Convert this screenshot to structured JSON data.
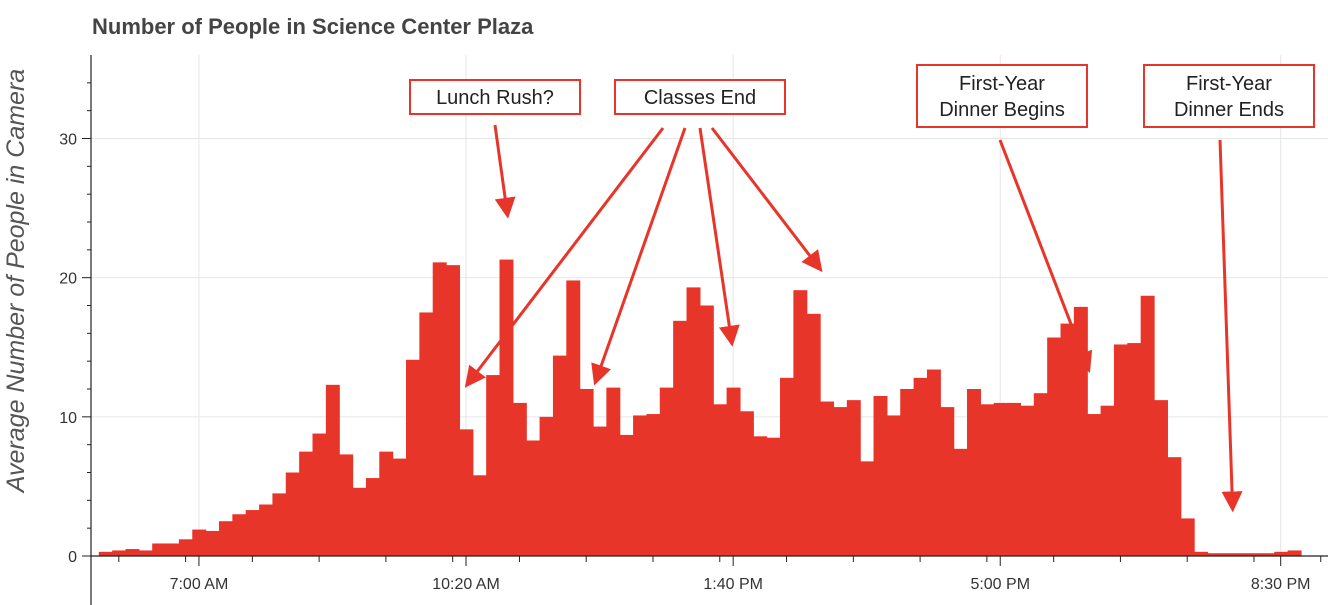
{
  "chart_data": {
    "type": "bar",
    "title": "Number of People in Science Center Plaza",
    "xlabel": "",
    "ylabel": "Average Number of People in Camera",
    "ylim": [
      0,
      36
    ],
    "yticks": [
      0,
      10,
      20,
      30
    ],
    "xticks": [
      {
        "label": "7:00 AM",
        "at": 7.0
      },
      {
        "label": "10:20 AM",
        "at": 10.333
      },
      {
        "label": "1:40 PM",
        "at": 13.667
      },
      {
        "label": "5:00 PM",
        "at": 17.0
      },
      {
        "label": "8:30 PM",
        "at": 20.5
      }
    ],
    "x_start_hour": 5.75,
    "bin_hours": 0.1667,
    "values": [
      0.3,
      0.4,
      0.5,
      0.4,
      0.9,
      0.9,
      1.2,
      1.9,
      1.8,
      2.5,
      3.0,
      3.3,
      3.7,
      4.5,
      6.0,
      7.5,
      8.8,
      12.3,
      7.3,
      4.9,
      5.6,
      7.5,
      7.0,
      14.1,
      17.5,
      21.1,
      20.9,
      9.1,
      5.8,
      13.0,
      21.3,
      11.0,
      8.3,
      10.0,
      14.4,
      19.8,
      12.0,
      9.3,
      12.1,
      8.7,
      10.1,
      10.2,
      12.1,
      16.9,
      19.3,
      18.0,
      10.9,
      12.1,
      10.4,
      8.6,
      8.5,
      12.8,
      19.1,
      17.4,
      11.1,
      10.7,
      11.2,
      6.8,
      11.5,
      10.1,
      12.0,
      12.8,
      13.4,
      10.7,
      7.7,
      12.0,
      10.9,
      11.0,
      11.0,
      10.8,
      11.7,
      15.7,
      16.7,
      17.9,
      10.2,
      10.8,
      15.2,
      15.3,
      18.7,
      11.2,
      7.1,
      2.7,
      0.3,
      0.2,
      0.2,
      0.2,
      0.2,
      0.2,
      0.3,
      0.4
    ],
    "color": "#e8352a",
    "annotations": [
      {
        "label": "Lunch Rush?",
        "lines": [
          "Lunch Rush?"
        ],
        "arrows_to": [
          10.85
        ]
      },
      {
        "label": "Classes End",
        "lines": [
          "Classes End"
        ],
        "arrows_to": [
          10.35,
          11.95,
          13.65,
          14.75
        ]
      },
      {
        "label": "First-Year Dinner Begins",
        "lines": [
          "First-Year",
          "Dinner Begins"
        ],
        "arrows_to": [
          18.1
        ]
      },
      {
        "label": "First-Year Dinner Ends",
        "lines": [
          "First-Year",
          "Dinner Ends"
        ],
        "arrows_to": [
          19.9
        ]
      }
    ]
  }
}
